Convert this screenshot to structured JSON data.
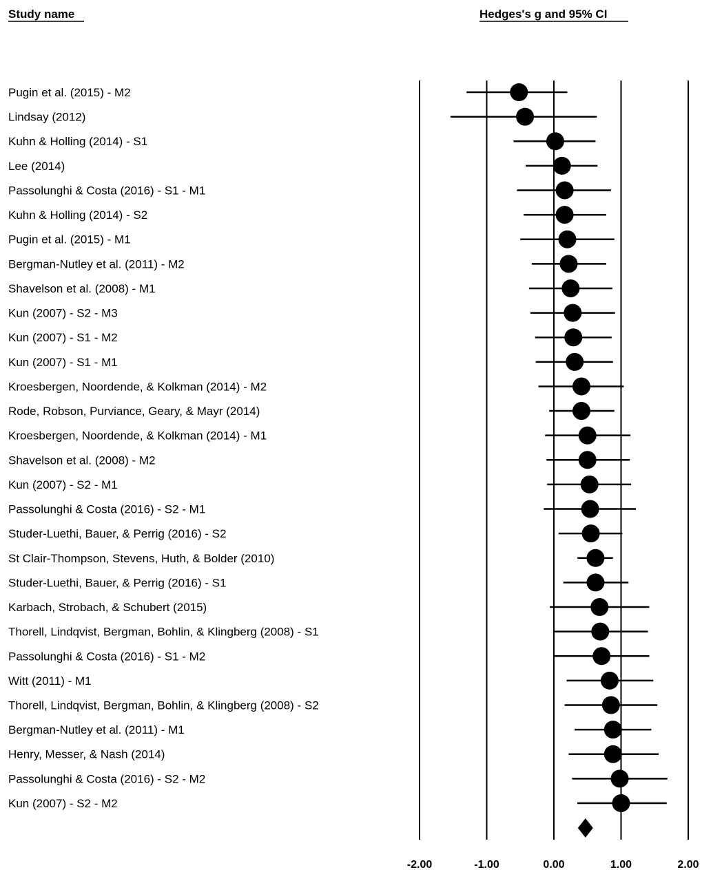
{
  "chart_data": {
    "type": "forest",
    "column_header_left": "Study name",
    "column_header_right": "Hedges's g and 95% CI",
    "xlim": [
      -2.0,
      2.0
    ],
    "x_ticks": [
      -2.0,
      -1.0,
      0.0,
      1.0,
      2.0
    ],
    "x_tick_labels": [
      "-2.00",
      "-1.00",
      "0.00",
      "1.00",
      "2.00"
    ],
    "studies": [
      {
        "name": "Pugin et al. (2015) - M2",
        "g": -0.52,
        "lower": -1.3,
        "upper": 0.2
      },
      {
        "name": "Lindsay (2012)",
        "g": -0.43,
        "lower": -1.54,
        "upper": 0.64
      },
      {
        "name": "Kuhn & Holling (2014) - S1",
        "g": 0.02,
        "lower": -0.6,
        "upper": 0.62
      },
      {
        "name": "Lee (2014)",
        "g": 0.12,
        "lower": -0.42,
        "upper": 0.65
      },
      {
        "name": "Passolunghi & Costa (2016) - S1 - M1",
        "g": 0.16,
        "lower": -0.55,
        "upper": 0.85
      },
      {
        "name": "Kuhn & Holling (2014) - S2",
        "g": 0.16,
        "lower": -0.45,
        "upper": 0.78
      },
      {
        "name": "Pugin et al. (2015) - M1",
        "g": 0.2,
        "lower": -0.5,
        "upper": 0.9
      },
      {
        "name": "Bergman-Nutley et al. (2011) - M2",
        "g": 0.22,
        "lower": -0.33,
        "upper": 0.78
      },
      {
        "name": "Shavelson et al. (2008) - M1",
        "g": 0.25,
        "lower": -0.37,
        "upper": 0.87
      },
      {
        "name": "Kun (2007) - S2 - M3",
        "g": 0.28,
        "lower": -0.35,
        "upper": 0.91
      },
      {
        "name": "Kun (2007) - S1 - M2",
        "g": 0.29,
        "lower": -0.28,
        "upper": 0.86
      },
      {
        "name": "Kun (2007) - S1 - M1",
        "g": 0.31,
        "lower": -0.27,
        "upper": 0.88
      },
      {
        "name": "Kroesbergen, Noordende, & Kolkman (2014) - M2",
        "g": 0.41,
        "lower": -0.23,
        "upper": 1.04
      },
      {
        "name": "Rode, Robson, Purviance, Geary, & Mayr (2014)",
        "g": 0.41,
        "lower": -0.07,
        "upper": 0.9
      },
      {
        "name": "Kroesbergen, Noordende, & Kolkman (2014) - M1",
        "g": 0.5,
        "lower": -0.13,
        "upper": 1.14
      },
      {
        "name": "Shavelson et al. (2008) - M2",
        "g": 0.5,
        "lower": -0.11,
        "upper": 1.13
      },
      {
        "name": "Kun (2007) - S2 - M1",
        "g": 0.53,
        "lower": -0.1,
        "upper": 1.15
      },
      {
        "name": "Passolunghi & Costa (2016) - S2 - M1",
        "g": 0.54,
        "lower": -0.15,
        "upper": 1.22
      },
      {
        "name": "Studer-Luethi, Bauer, & Perrig (2016) - S2",
        "g": 0.55,
        "lower": 0.07,
        "upper": 1.02
      },
      {
        "name": "St Clair-Thompson, Stevens, Huth, & Bolder (2010)",
        "g": 0.62,
        "lower": 0.35,
        "upper": 0.88
      },
      {
        "name": "Studer-Luethi, Bauer, & Perrig (2016) - S1",
        "g": 0.62,
        "lower": 0.14,
        "upper": 1.11
      },
      {
        "name": "Karbach, Strobach, & Schubert (2015)",
        "g": 0.68,
        "lower": -0.06,
        "upper": 1.42
      },
      {
        "name": "Thorell, Lindqvist, Bergman, Bohlin, & Klingberg (2008) - S1",
        "g": 0.69,
        "lower": -0.01,
        "upper": 1.4
      },
      {
        "name": "Passolunghi & Costa (2016) - S1 - M2",
        "g": 0.71,
        "lower": 0.0,
        "upper": 1.42
      },
      {
        "name": "Witt (2011) - M1",
        "g": 0.83,
        "lower": 0.19,
        "upper": 1.48
      },
      {
        "name": "Thorell, Lindqvist, Bergman, Bohlin, & Klingberg (2008) - S2",
        "g": 0.85,
        "lower": 0.16,
        "upper": 1.54
      },
      {
        "name": "Bergman-Nutley et al. (2011) - M1",
        "g": 0.88,
        "lower": 0.31,
        "upper": 1.45
      },
      {
        "name": "Henry, Messer, & Nash (2014)",
        "g": 0.88,
        "lower": 0.22,
        "upper": 1.56
      },
      {
        "name": "Passolunghi & Costa (2016) - S2 - M2",
        "g": 0.98,
        "lower": 0.27,
        "upper": 1.69
      },
      {
        "name": "Kun (2007) - S2 - M2",
        "g": 1.0,
        "lower": 0.35,
        "upper": 1.68
      }
    ],
    "summary": {
      "g": 0.47
    }
  }
}
